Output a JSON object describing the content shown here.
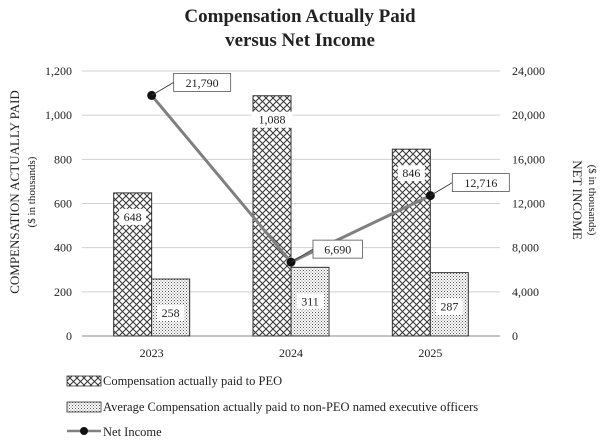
{
  "chart_data": {
    "type": "bar",
    "title_line1": "Compensation Actually Paid",
    "title_line2": "versus Net Income",
    "categories": [
      "2023",
      "2024",
      "2025"
    ],
    "series": [
      {
        "name": "Compensation actually paid to PEO",
        "kind": "bar",
        "axis": "left",
        "pattern": "crosshatch",
        "values": [
          648,
          1088,
          846
        ],
        "labels": [
          "648",
          "1,088",
          "846"
        ]
      },
      {
        "name": "Average Compensation actually paid to non-PEO named executive officers",
        "kind": "bar",
        "axis": "left",
        "pattern": "dots",
        "values": [
          258,
          311,
          287
        ],
        "labels": [
          "258",
          "311",
          "287"
        ]
      },
      {
        "name": "Net Income",
        "kind": "line",
        "axis": "right",
        "color": "#808080",
        "values": [
          21790,
          6690,
          12716
        ],
        "labels": [
          "21,790",
          "6,690",
          "12,716"
        ]
      }
    ],
    "y_left": {
      "label": "COMPENSATION ACTUALLY PAID",
      "sublabel": "($ in thousands)",
      "ylim": [
        0,
        1200
      ],
      "ticks": [
        0,
        200,
        400,
        600,
        800,
        1000,
        1200
      ],
      "tick_labels": [
        "0",
        "200",
        "400",
        "600",
        "800",
        "1,000",
        "1,200"
      ]
    },
    "y_right": {
      "label": "NET INCOME",
      "sublabel": "($ in thousands)",
      "ylim": [
        0,
        24000
      ],
      "ticks": [
        0,
        4000,
        8000,
        12000,
        16000,
        20000,
        24000
      ],
      "tick_labels": [
        "0",
        "4,000",
        "8,000",
        "12,000",
        "16,000",
        "20,000",
        "24,000"
      ]
    },
    "grid": true,
    "legend_position": "bottom"
  }
}
